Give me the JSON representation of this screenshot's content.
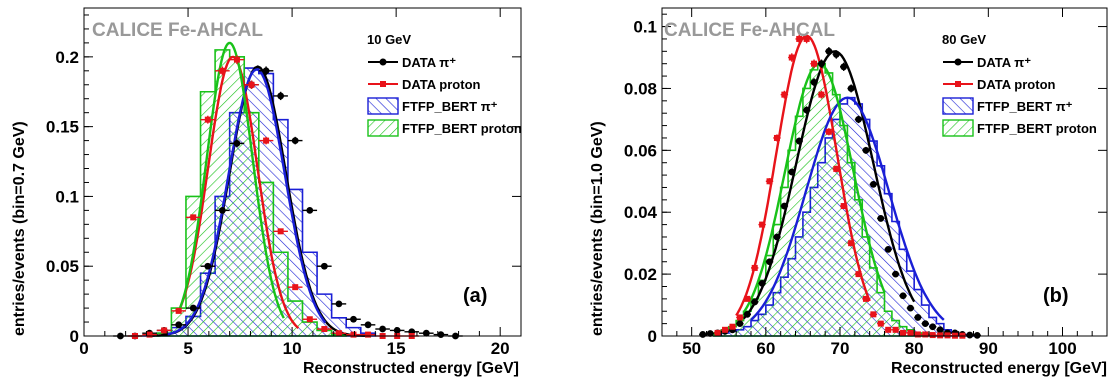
{
  "chart_data": [
    {
      "type": "histogram",
      "experiment_label": "CALICE Fe-AHCAL",
      "energy_label": "10 GeV",
      "panel_label": "(a)",
      "xlabel": "Reconstructed energy [GeV]",
      "ylabel": "entries/events (bin=0.7 GeV)",
      "xlim": [
        0,
        21
      ],
      "ylim": [
        0,
        0.235
      ],
      "xticks": [
        0,
        5,
        10,
        15,
        20
      ],
      "xtick_labels": [
        "0",
        "5",
        "10",
        "15",
        "20"
      ],
      "yticks": [
        0,
        0.05,
        0.1,
        0.15,
        0.2
      ],
      "ytick_labels": [
        "0",
        "0.05",
        "0.1",
        "0.15",
        "0.2"
      ],
      "legend": [
        {
          "label": "DATA  π⁺",
          "color": "#000000",
          "style": "marker-circle"
        },
        {
          "label": "DATA  proton",
          "color": "#e8131a",
          "style": "marker-square"
        },
        {
          "label": "FTFP_BERT  π⁺",
          "color": "#1a1fd6",
          "style": "hatch-back"
        },
        {
          "label": "FTFP_BERT  proton",
          "color": "#19c219",
          "style": "hatch-fwd"
        }
      ],
      "series": [
        {
          "name": "DATA  π⁺",
          "kind": "points",
          "color": "#000000",
          "x": [
            1.75,
            2.45,
            3.15,
            3.85,
            4.55,
            5.25,
            5.95,
            6.65,
            7.35,
            8.05,
            8.75,
            9.45,
            10.15,
            10.85,
            11.55,
            12.25,
            12.95,
            13.65,
            14.35,
            15.05,
            15.75,
            16.45,
            17.15,
            17.85
          ],
          "y": [
            0.0,
            0.0,
            0.002,
            0.004,
            0.008,
            0.02,
            0.05,
            0.09,
            0.138,
            0.18,
            0.19,
            0.172,
            0.14,
            0.09,
            0.05,
            0.023,
            0.012,
            0.008,
            0.005,
            0.004,
            0.003,
            0.002,
            0.001,
            0.0
          ]
        },
        {
          "name": "DATA  proton",
          "kind": "points",
          "color": "#e8131a",
          "x": [
            2.45,
            3.15,
            3.85,
            4.55,
            5.25,
            5.95,
            6.65,
            7.35,
            8.05,
            8.75,
            9.45,
            10.15,
            10.85,
            11.55,
            12.25,
            12.95,
            13.65,
            14.35,
            15.05,
            15.75
          ],
          "y": [
            0.0,
            0.001,
            0.004,
            0.018,
            0.085,
            0.155,
            0.19,
            0.198,
            0.18,
            0.14,
            0.075,
            0.035,
            0.012,
            0.005,
            0.002,
            0.001,
            0.001,
            0.0,
            0.0,
            0.0
          ]
        },
        {
          "name": "FTFP_BERT  π⁺",
          "kind": "histogram",
          "color": "#1a1fd6",
          "hatch": "back",
          "edges": [
            2.8,
            3.5,
            4.2,
            4.9,
            5.6,
            6.3,
            7.0,
            7.7,
            8.4,
            9.1,
            9.8,
            10.5,
            11.2,
            11.9,
            12.6,
            13.3,
            14.0
          ],
          "values": [
            0.0,
            0.002,
            0.006,
            0.014,
            0.045,
            0.1,
            0.16,
            0.192,
            0.188,
            0.155,
            0.105,
            0.06,
            0.03,
            0.013,
            0.006,
            0.002
          ]
        },
        {
          "name": "FTFP_BERT  proton",
          "kind": "histogram",
          "color": "#19c219",
          "hatch": "fwd",
          "edges": [
            3.5,
            4.2,
            4.9,
            5.6,
            6.3,
            7.0,
            7.7,
            8.4,
            9.1,
            9.8,
            10.5,
            11.2,
            11.9,
            12.6
          ],
          "values": [
            0.002,
            0.02,
            0.1,
            0.175,
            0.205,
            0.2,
            0.16,
            0.11,
            0.06,
            0.025,
            0.01,
            0.004,
            0.001
          ]
        },
        {
          "name": "fit DATA π⁺",
          "kind": "curve",
          "color": "#000000",
          "mean": 8.35,
          "sigma": 1.35,
          "amp": 0.193,
          "range": [
            3.2,
            13.5
          ]
        },
        {
          "name": "fit DATA proton",
          "kind": "curve",
          "color": "#e8131a",
          "mean": 7.15,
          "sigma": 1.18,
          "amp": 0.2,
          "range": [
            4.6,
            10.3
          ]
        },
        {
          "name": "fit FTFP_BERT π⁺",
          "kind": "curve",
          "color": "#1a1fd6",
          "mean": 8.3,
          "sigma": 1.35,
          "amp": 0.191,
          "range": [
            4.0,
            11.6
          ]
        },
        {
          "name": "fit FTFP_BERT proton",
          "kind": "curve",
          "color": "#19c219",
          "mean": 7.0,
          "sigma": 1.1,
          "amp": 0.21,
          "range": [
            4.6,
            9.6
          ]
        }
      ]
    },
    {
      "type": "histogram",
      "experiment_label": "CALICE Fe-AHCAL",
      "energy_label": "80 GeV",
      "panel_label": "(b)",
      "xlabel": "Reconstructed energy [GeV]",
      "ylabel": "entries/events (bin=1.0 GeV)",
      "xlim": [
        46,
        106
      ],
      "ylim": [
        0,
        0.106
      ],
      "xticks": [
        50,
        60,
        70,
        80,
        90,
        100
      ],
      "xtick_labels": [
        "50",
        "60",
        "70",
        "80",
        "90",
        "100"
      ],
      "yticks": [
        0,
        0.02,
        0.04,
        0.06,
        0.08,
        0.1
      ],
      "ytick_labels": [
        "0",
        "0.02",
        "0.04",
        "0.06",
        "0.08",
        "0.1"
      ],
      "legend": [
        {
          "label": "DATA  π⁺",
          "color": "#000000",
          "style": "marker-circle"
        },
        {
          "label": "DATA  proton",
          "color": "#e8131a",
          "style": "marker-square"
        },
        {
          "label": "FTFP_BERT  π⁺",
          "color": "#1a1fd6",
          "style": "hatch-back"
        },
        {
          "label": "FTFP_BERT  proton",
          "color": "#19c219",
          "style": "hatch-fwd"
        }
      ],
      "series": [
        {
          "name": "DATA  π⁺",
          "kind": "points",
          "color": "#000000",
          "x": [
            51.5,
            52.5,
            53.5,
            54.5,
            55.5,
            56.5,
            57.5,
            58.5,
            59.5,
            60.5,
            61.5,
            62.5,
            63.5,
            64.5,
            65.5,
            66.5,
            67.5,
            68.5,
            69.5,
            70.5,
            71.5,
            72.5,
            73.5,
            74.5,
            75.5,
            76.5,
            77.5,
            78.5,
            79.5,
            80.5,
            81.5,
            82.5,
            83.5,
            84.5,
            85.5,
            86.5,
            87.5,
            88.5
          ],
          "y": [
            0.0005,
            0.0008,
            0.001,
            0.0015,
            0.002,
            0.004,
            0.007,
            0.011,
            0.017,
            0.024,
            0.032,
            0.042,
            0.053,
            0.063,
            0.073,
            0.082,
            0.088,
            0.092,
            0.091,
            0.087,
            0.08,
            0.07,
            0.06,
            0.049,
            0.038,
            0.028,
            0.02,
            0.013,
            0.009,
            0.006,
            0.004,
            0.003,
            0.002,
            0.001,
            0.001,
            0.0005,
            0.0003,
            0.0002
          ]
        },
        {
          "name": "DATA  proton",
          "kind": "points",
          "color": "#e8131a",
          "x": [
            53.5,
            54.5,
            55.5,
            56.5,
            57.5,
            58.5,
            59.5,
            60.5,
            61.5,
            62.5,
            63.5,
            64.5,
            65.5,
            66.5,
            67.5,
            68.5,
            69.5,
            70.5,
            71.5,
            72.5,
            73.5,
            74.5,
            75.5,
            76.5,
            77.5,
            78.5,
            79.5,
            80.5,
            81.5,
            82.5,
            83.5,
            84.5,
            85.5,
            86.5
          ],
          "y": [
            0.001,
            0.002,
            0.003,
            0.006,
            0.012,
            0.022,
            0.036,
            0.05,
            0.064,
            0.078,
            0.09,
            0.096,
            0.096,
            0.088,
            0.078,
            0.066,
            0.054,
            0.042,
            0.03,
            0.02,
            0.012,
            0.007,
            0.004,
            0.002,
            0.002,
            0.001,
            0.001,
            0.0005,
            0.0005,
            0.0003,
            0.0002,
            0.0002,
            0.0001,
            0.0001
          ]
        },
        {
          "name": "FTFP_BERT  π⁺",
          "kind": "histogram",
          "color": "#1a1fd6",
          "hatch": "back",
          "edges": [
            53,
            54,
            55,
            56,
            57,
            58,
            59,
            60,
            61,
            62,
            63,
            64,
            65,
            66,
            67,
            68,
            69,
            70,
            71,
            72,
            73,
            74,
            75,
            76,
            77,
            78,
            79,
            80,
            81,
            82,
            83,
            84,
            85,
            86,
            87,
            88
          ],
          "values": [
            0.0005,
            0.001,
            0.0015,
            0.002,
            0.003,
            0.005,
            0.007,
            0.01,
            0.014,
            0.019,
            0.025,
            0.032,
            0.04,
            0.048,
            0.056,
            0.064,
            0.07,
            0.075,
            0.077,
            0.075,
            0.07,
            0.063,
            0.055,
            0.046,
            0.037,
            0.028,
            0.021,
            0.015,
            0.01,
            0.006,
            0.004,
            0.002,
            0.001,
            0.0005,
            0.0003
          ]
        },
        {
          "name": "FTFP_BERT  proton",
          "kind": "histogram",
          "color": "#19c219",
          "hatch": "fwd",
          "edges": [
            53,
            54,
            55,
            56,
            57,
            58,
            59,
            60,
            61,
            62,
            63,
            64,
            65,
            66,
            67,
            68,
            69,
            70,
            71,
            72,
            73,
            74,
            75,
            76,
            77,
            78,
            79,
            80,
            81,
            82
          ],
          "values": [
            0.001,
            0.002,
            0.003,
            0.005,
            0.008,
            0.012,
            0.018,
            0.026,
            0.036,
            0.048,
            0.06,
            0.071,
            0.08,
            0.086,
            0.088,
            0.085,
            0.078,
            0.068,
            0.056,
            0.044,
            0.032,
            0.022,
            0.014,
            0.008,
            0.005,
            0.003,
            0.002,
            0.001,
            0.0005
          ]
        },
        {
          "name": "fit DATA π⁺",
          "kind": "curve",
          "color": "#000000",
          "mean": 69.3,
          "sigma": 5.2,
          "amp": 0.092,
          "range": [
            57,
            80
          ]
        },
        {
          "name": "fit DATA proton",
          "kind": "curve",
          "color": "#e8131a",
          "mean": 65.5,
          "sigma": 4.1,
          "amp": 0.097,
          "range": [
            56,
            74
          ]
        },
        {
          "name": "fit FTFP_BERT π⁺",
          "kind": "curve",
          "color": "#1a1fd6",
          "mean": 71.0,
          "sigma": 5.6,
          "amp": 0.077,
          "range": [
            58,
            84
          ]
        },
        {
          "name": "fit FTFP_BERT proton",
          "kind": "curve",
          "color": "#19c219",
          "mean": 67.2,
          "sigma": 4.6,
          "amp": 0.088,
          "range": [
            57,
            76
          ]
        }
      ]
    }
  ]
}
